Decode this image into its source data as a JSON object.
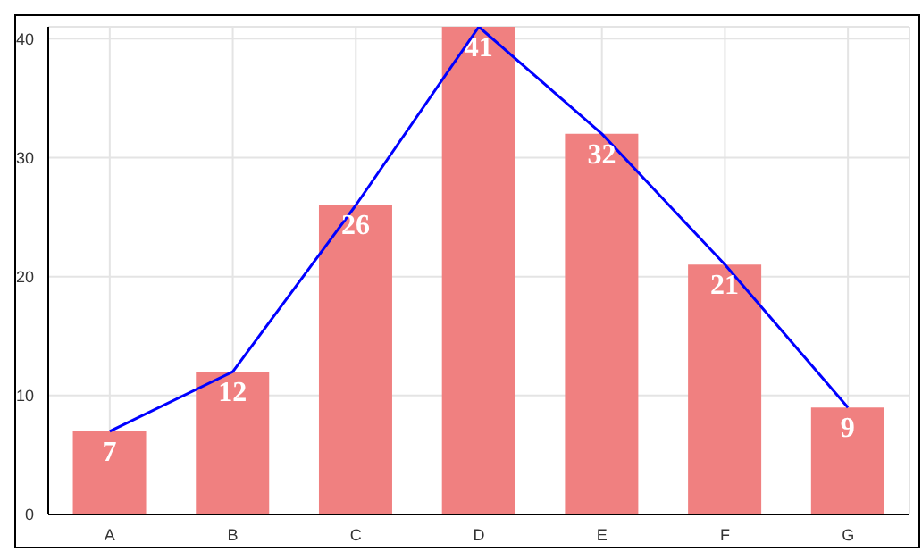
{
  "chart_data": {
    "type": "bar",
    "categories": [
      "A",
      "B",
      "C",
      "D",
      "E",
      "F",
      "G"
    ],
    "series": [
      {
        "color": "#f08080",
        "values": [
          7,
          12,
          26,
          41,
          32,
          21,
          9
        ],
        "value_labels": [
          "7",
          "12",
          "26",
          "41",
          "32",
          "21",
          "9"
        ]
      },
      {
        "type": "line",
        "color": "#0000ff",
        "values": [
          7,
          12,
          26,
          41,
          32,
          21,
          9
        ]
      }
    ],
    "ylim": [
      0,
      41
    ],
    "yticks": [
      0,
      10,
      20,
      30,
      40
    ],
    "grid": true,
    "marker": "none"
  }
}
